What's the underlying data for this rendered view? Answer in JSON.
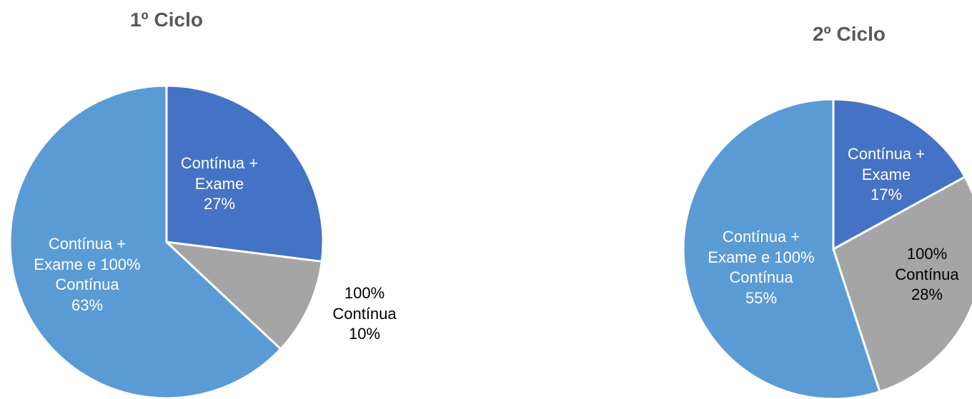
{
  "chart_data": [
    {
      "type": "pie",
      "title": "1º Ciclo",
      "categories": [
        "Contínua + Exame",
        "100% Contínua",
        "Contínua + Exame e 100% Contínua"
      ],
      "values": [
        27,
        10,
        63
      ],
      "value_labels": [
        "27%",
        "10%",
        "63%"
      ],
      "colors": [
        "#4472c4",
        "#a5a5a5",
        "#5b9bd5"
      ]
    },
    {
      "type": "pie",
      "title": "2º Ciclo",
      "categories": [
        "Contínua + Exame",
        "100% Contínua",
        "Contínua + Exame e 100% Contínua"
      ],
      "values": [
        17,
        28,
        55
      ],
      "value_labels": [
        "17%",
        "28%",
        "55%"
      ],
      "colors": [
        "#4472c4",
        "#a5a5a5",
        "#5b9bd5"
      ]
    }
  ]
}
